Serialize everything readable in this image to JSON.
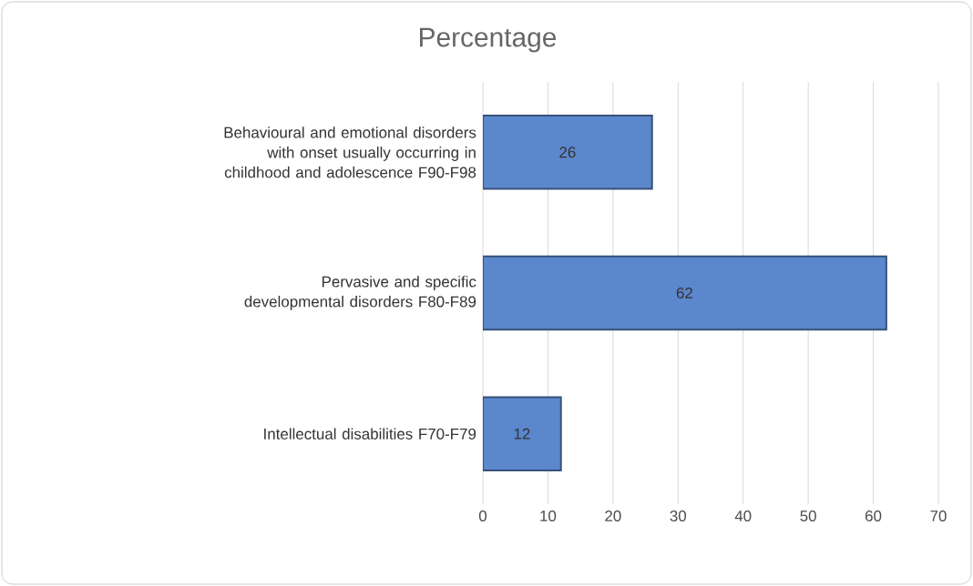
{
  "chart_data": {
    "type": "bar",
    "orientation": "horizontal",
    "title": "Percentage",
    "categories": [
      "Behavioural and emotional disorders with onset usually occurring in childhood and adolescence F90-F98",
      "Pervasive and specific developmental disorders F80-F89",
      "Intellectual disabilities F70-F79"
    ],
    "values": [
      26,
      62,
      12
    ],
    "color": "#5b87cc",
    "xlim": [
      0,
      70
    ],
    "xticks": [
      0,
      10,
      20,
      30,
      40,
      50,
      60,
      70
    ],
    "grid": "x",
    "data_labels": true
  }
}
